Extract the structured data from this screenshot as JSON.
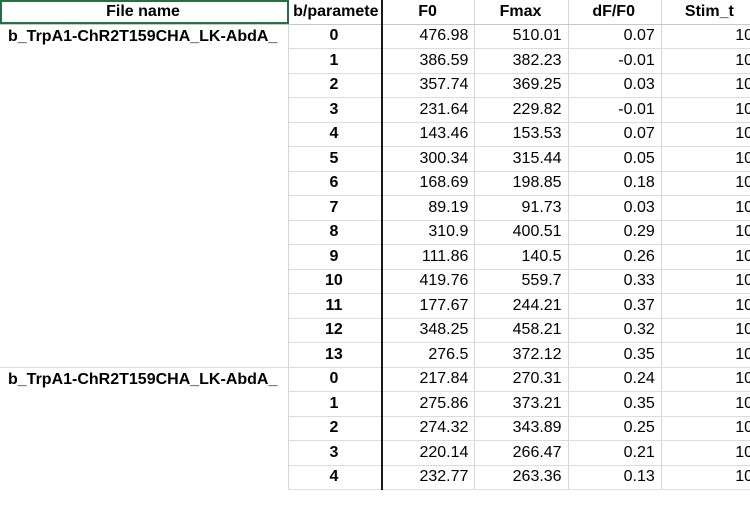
{
  "columns": {
    "file": "File name",
    "param": "b/paramete",
    "f0": "F0",
    "fmax": "Fmax",
    "df": "dF/F0",
    "stim": "Stim_t"
  },
  "groups": [
    {
      "file": "b_TrpA1-ChR2T159CHA_LK-AbdA_",
      "rows": [
        {
          "param": "0",
          "f0": "476.98",
          "fmax": "510.01",
          "df": "0.07",
          "stim": "10"
        },
        {
          "param": "1",
          "f0": "386.59",
          "fmax": "382.23",
          "df": "-0.01",
          "stim": "10"
        },
        {
          "param": "2",
          "f0": "357.74",
          "fmax": "369.25",
          "df": "0.03",
          "stim": "10"
        },
        {
          "param": "3",
          "f0": "231.64",
          "fmax": "229.82",
          "df": "-0.01",
          "stim": "10"
        },
        {
          "param": "4",
          "f0": "143.46",
          "fmax": "153.53",
          "df": "0.07",
          "stim": "10"
        },
        {
          "param": "5",
          "f0": "300.34",
          "fmax": "315.44",
          "df": "0.05",
          "stim": "10"
        },
        {
          "param": "6",
          "f0": "168.69",
          "fmax": "198.85",
          "df": "0.18",
          "stim": "10"
        },
        {
          "param": "7",
          "f0": "89.19",
          "fmax": "91.73",
          "df": "0.03",
          "stim": "10"
        },
        {
          "param": "8",
          "f0": "310.9",
          "fmax": "400.51",
          "df": "0.29",
          "stim": "10"
        },
        {
          "param": "9",
          "f0": "111.86",
          "fmax": "140.5",
          "df": "0.26",
          "stim": "10"
        },
        {
          "param": "10",
          "f0": "419.76",
          "fmax": "559.7",
          "df": "0.33",
          "stim": "10"
        },
        {
          "param": "11",
          "f0": "177.67",
          "fmax": "244.21",
          "df": "0.37",
          "stim": "10"
        },
        {
          "param": "12",
          "f0": "348.25",
          "fmax": "458.21",
          "df": "0.32",
          "stim": "10"
        },
        {
          "param": "13",
          "f0": "276.5",
          "fmax": "372.12",
          "df": "0.35",
          "stim": "10"
        }
      ]
    },
    {
      "file": "b_TrpA1-ChR2T159CHA_LK-AbdA_",
      "rows": [
        {
          "param": "0",
          "f0": "217.84",
          "fmax": "270.31",
          "df": "0.24",
          "stim": "10"
        },
        {
          "param": "1",
          "f0": "275.86",
          "fmax": "373.21",
          "df": "0.35",
          "stim": "10"
        },
        {
          "param": "2",
          "f0": "274.32",
          "fmax": "343.89",
          "df": "0.25",
          "stim": "10"
        },
        {
          "param": "3",
          "f0": "220.14",
          "fmax": "266.47",
          "df": "0.21",
          "stim": "10"
        },
        {
          "param": "4",
          "f0": "232.77",
          "fmax": "263.36",
          "df": "0.13",
          "stim": "10"
        }
      ]
    }
  ]
}
